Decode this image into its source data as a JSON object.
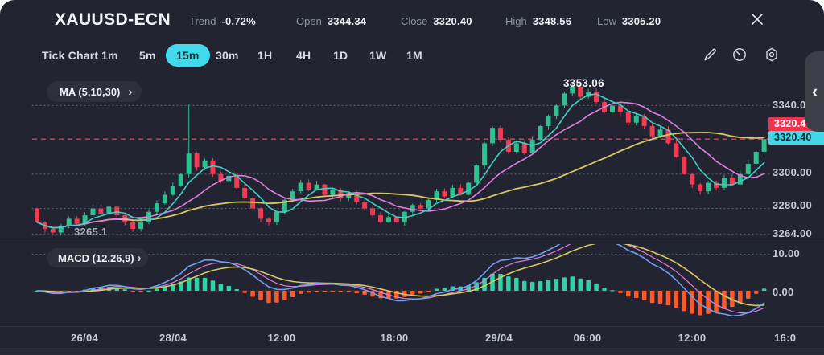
{
  "header": {
    "symbol": "XAUUSD-ECN",
    "stats": [
      {
        "label": "Trend",
        "value": "-0.72%"
      },
      {
        "label": "Open",
        "value": "3344.34"
      },
      {
        "label": "Close",
        "value": "3320.40"
      },
      {
        "label": "High",
        "value": "3348.56"
      },
      {
        "label": "Low",
        "value": "3305.20"
      }
    ]
  },
  "toolbar": {
    "timeframes": [
      {
        "label": "Tick Chart",
        "active": false
      },
      {
        "label": "1m",
        "active": false
      },
      {
        "label": "5m",
        "active": false
      },
      {
        "label": "15m",
        "active": true
      },
      {
        "label": "30m",
        "active": false
      },
      {
        "label": "1H",
        "active": false
      },
      {
        "label": "4H",
        "active": false
      },
      {
        "label": "1D",
        "active": false
      },
      {
        "label": "1W",
        "active": false
      },
      {
        "label": "1M",
        "active": false
      }
    ]
  },
  "chart": {
    "ma_pill": {
      "label": "MA (5,10,30)",
      "chevron": "›"
    },
    "macd_pill": {
      "label": "MACD (12,26,9)",
      "chevron": "›"
    },
    "high_marker_label": "3353.06",
    "low_marker_label": "3265.1",
    "price_axis": [
      "3340.00",
      "3300.00",
      "3280.00",
      "3264.00"
    ],
    "macd_axis": [
      "10.00",
      "0.00"
    ],
    "badges": {
      "last": "3320.4",
      "close": "3320.40"
    },
    "time_axis": [
      "26/04",
      "28/04",
      "12:00",
      "18:00",
      "29/04",
      "06:00",
      "12:00",
      "16:0"
    ]
  },
  "icons": {
    "drawer_chevron": "‹"
  },
  "chart_data": {
    "type": "candlestick",
    "symbol": "XAUUSD-ECN",
    "interval": "15m",
    "session": {
      "trend_pct": -0.72,
      "open": 3344.34,
      "close": 3320.4,
      "high": 3348.56,
      "low": 3305.2
    },
    "high_marker": 3353.06,
    "low_marker": 3265.1,
    "last_price": 3320.4,
    "ylim": [
      3262,
      3357
    ],
    "price_axis_ticks": [
      3340,
      3300,
      3280,
      3264
    ],
    "open_first": 3280,
    "closes": [
      3272,
      3268,
      3266,
      3270,
      3274,
      3271,
      3276,
      3280,
      3277,
      3281,
      3276,
      3272,
      3268,
      3272,
      3278,
      3283,
      3288,
      3293,
      3300,
      3312,
      3304,
      3308,
      3300,
      3296,
      3299,
      3292,
      3286,
      3280,
      3274,
      3272,
      3278,
      3285,
      3290,
      3295,
      3291,
      3294,
      3288,
      3291,
      3286,
      3289,
      3284,
      3280,
      3276,
      3272,
      3275,
      3272,
      3278,
      3282,
      3280,
      3285,
      3290,
      3287,
      3292,
      3288,
      3295,
      3305,
      3318,
      3327,
      3320,
      3313,
      3318,
      3312,
      3320,
      3328,
      3334,
      3340,
      3347,
      3351,
      3345,
      3348,
      3342,
      3336,
      3340,
      3336,
      3330,
      3334,
      3328,
      3322,
      3326,
      3318,
      3310,
      3300,
      3294,
      3290,
      3295,
      3292,
      3298,
      3294,
      3300,
      3306,
      3313,
      3320.4
    ],
    "wick_overrides": {
      "2": {
        "low": 3265.1
      },
      "19": {
        "high": 3340.5
      },
      "67": {
        "high": 3353.06
      }
    },
    "indicators": {
      "ma": {
        "periods": [
          5,
          10,
          30
        ]
      },
      "macd": {
        "params": [
          12,
          26,
          9
        ],
        "axis_ticks": [
          10,
          0
        ]
      }
    },
    "colors": {
      "bull": "#2fbf90",
      "bear": "#f23b52",
      "ma5": "#3ecfc4",
      "ma10": "#df7ede",
      "ma30": "#d8c863",
      "hist_pos": "#2fd3a5",
      "hist_neg": "#fa5c2f",
      "macd_line": "#6f9ff0",
      "signal_line": "#d8c863",
      "macd_fast_line": "#e07ce0",
      "last_price_line": "#ef3a55",
      "grid_dots": "#5a5e6c",
      "accent_cyan": "#41d9ec",
      "badge_red": "#f3324d"
    }
  }
}
